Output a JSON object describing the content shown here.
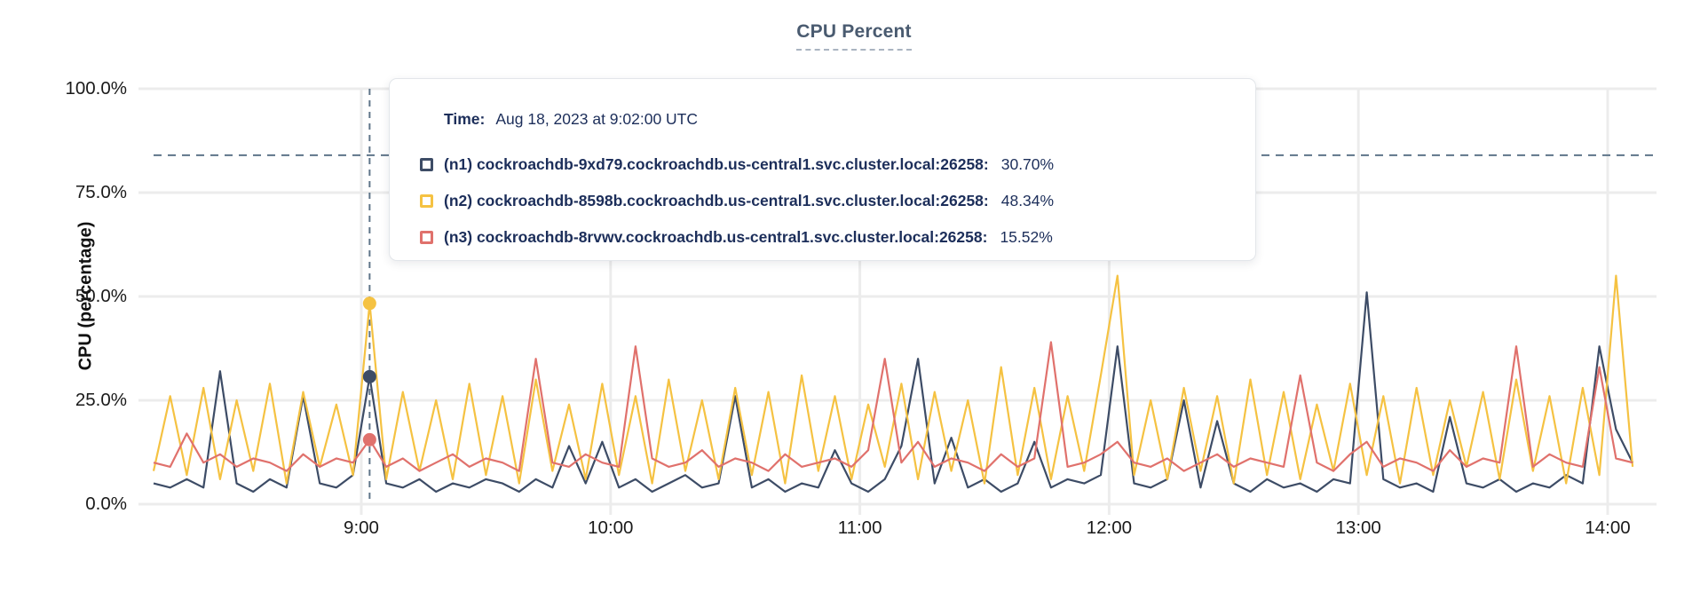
{
  "chart_data": {
    "type": "line",
    "title": "CPU Percent",
    "ylabel": "CPU (percentage)",
    "ylim": [
      0,
      100
    ],
    "grid": true,
    "y_tick_values": [
      0,
      25,
      50,
      75,
      100
    ],
    "y_tick_labels": [
      "0.0%",
      "25.0%",
      "50.0%",
      "75.0%",
      "100.0%"
    ],
    "x_tick_minutes": [
      540,
      600,
      660,
      720,
      780,
      840
    ],
    "x_tick_labels": [
      "9:00",
      "10:00",
      "11:00",
      "12:00",
      "13:00",
      "14:00"
    ],
    "x_start_minutes": 490,
    "x_step_minutes": 4,
    "threshold_value": 84,
    "series": [
      {
        "name": "(n1) cockroachdb-9xd79.cockroachdb.us-central1.svc.cluster.local:26258",
        "color": "#3d4c66",
        "values": [
          5,
          4,
          6,
          4,
          32,
          5,
          3,
          6,
          4,
          26,
          5,
          4,
          7,
          30.7,
          5,
          4,
          6,
          3,
          5,
          4,
          6,
          5,
          3,
          6,
          4,
          14,
          5,
          15,
          4,
          6,
          3,
          5,
          7,
          4,
          5,
          26,
          4,
          6,
          3,
          5,
          4,
          13,
          5,
          3,
          6,
          14,
          35,
          5,
          16,
          4,
          6,
          3,
          5,
          15,
          4,
          6,
          5,
          7,
          38,
          5,
          4,
          6,
          25,
          4,
          20,
          5,
          3,
          6,
          4,
          5,
          3,
          6,
          5,
          51,
          6,
          4,
          5,
          3,
          21,
          5,
          4,
          6,
          3,
          5,
          4,
          7,
          5,
          38,
          18,
          10
        ]
      },
      {
        "name": "(n2) cockroachdb-8598b.cockroachdb.us-central1.svc.cluster.local:26258",
        "color": "#f5c242",
        "values": [
          8,
          26,
          7,
          28,
          6,
          25,
          8,
          29,
          5,
          27,
          9,
          24,
          7,
          48.34,
          6,
          27,
          8,
          25,
          6,
          29,
          7,
          26,
          5,
          30,
          8,
          24,
          6,
          29,
          7,
          26,
          5,
          30,
          8,
          25,
          6,
          28,
          7,
          27,
          5,
          31,
          8,
          26,
          6,
          24,
          9,
          29,
          6,
          27,
          8,
          25,
          5,
          33,
          7,
          28,
          6,
          26,
          8,
          31,
          55,
          7,
          25,
          6,
          28,
          8,
          26,
          5,
          30,
          7,
          27,
          6,
          24,
          8,
          29,
          7,
          26,
          5,
          28,
          7,
          25,
          9,
          27,
          6,
          30,
          8,
          26,
          5,
          28,
          7,
          55,
          9
        ]
      },
      {
        "name": "(n3) cockroachdb-8rvwv.cockroachdb.us-central1.svc.cluster.local:26258",
        "color": "#e0716c",
        "values": [
          10,
          9,
          17,
          10,
          12,
          9,
          11,
          10,
          8,
          12,
          9,
          11,
          10,
          15.52,
          9,
          11,
          8,
          10,
          12,
          9,
          11,
          10,
          8,
          35,
          10,
          9,
          12,
          10,
          9,
          38,
          11,
          9,
          10,
          13,
          9,
          11,
          10,
          8,
          12,
          9,
          10,
          11,
          9,
          13,
          35,
          10,
          15,
          9,
          11,
          10,
          8,
          12,
          9,
          11,
          39,
          9,
          10,
          12,
          15,
          10,
          9,
          11,
          8,
          10,
          12,
          9,
          11,
          10,
          9,
          31,
          10,
          8,
          12,
          15,
          9,
          11,
          10,
          8,
          13,
          9,
          11,
          10,
          38,
          9,
          12,
          10,
          9,
          33,
          11,
          10
        ]
      }
    ],
    "hover": {
      "x_minutes": 542,
      "time_label": "Time:",
      "time_value": "Aug 18, 2023 at 9:02:00 UTC",
      "points": [
        {
          "series_index": 0,
          "value": 30.7,
          "display": "30.70%"
        },
        {
          "series_index": 1,
          "value": 48.34,
          "display": "48.34%"
        },
        {
          "series_index": 2,
          "value": 15.52,
          "display": "15.52%"
        }
      ]
    },
    "tooltip_rows": [
      {
        "label": "(n1) cockroachdb-9xd79.cockroachdb.us-central1.svc.cluster.local:26258:",
        "value": "30.70%",
        "color": "#3d4c66"
      },
      {
        "label": "(n2) cockroachdb-8598b.cockroachdb.us-central1.svc.cluster.local:26258:",
        "value": "48.34%",
        "color": "#f5c242"
      },
      {
        "label": "(n3) cockroachdb-8rvwv.cockroachdb.us-central1.svc.cluster.local:26258:",
        "value": "15.52%",
        "color": "#e0716c"
      }
    ],
    "colors": {
      "gridline": "#ececec",
      "dashed_guides": "#5f7589",
      "axis_text": "#1a1a1a",
      "title_text": "#4a5b70",
      "tooltip_text": "#1c2e5a"
    }
  }
}
